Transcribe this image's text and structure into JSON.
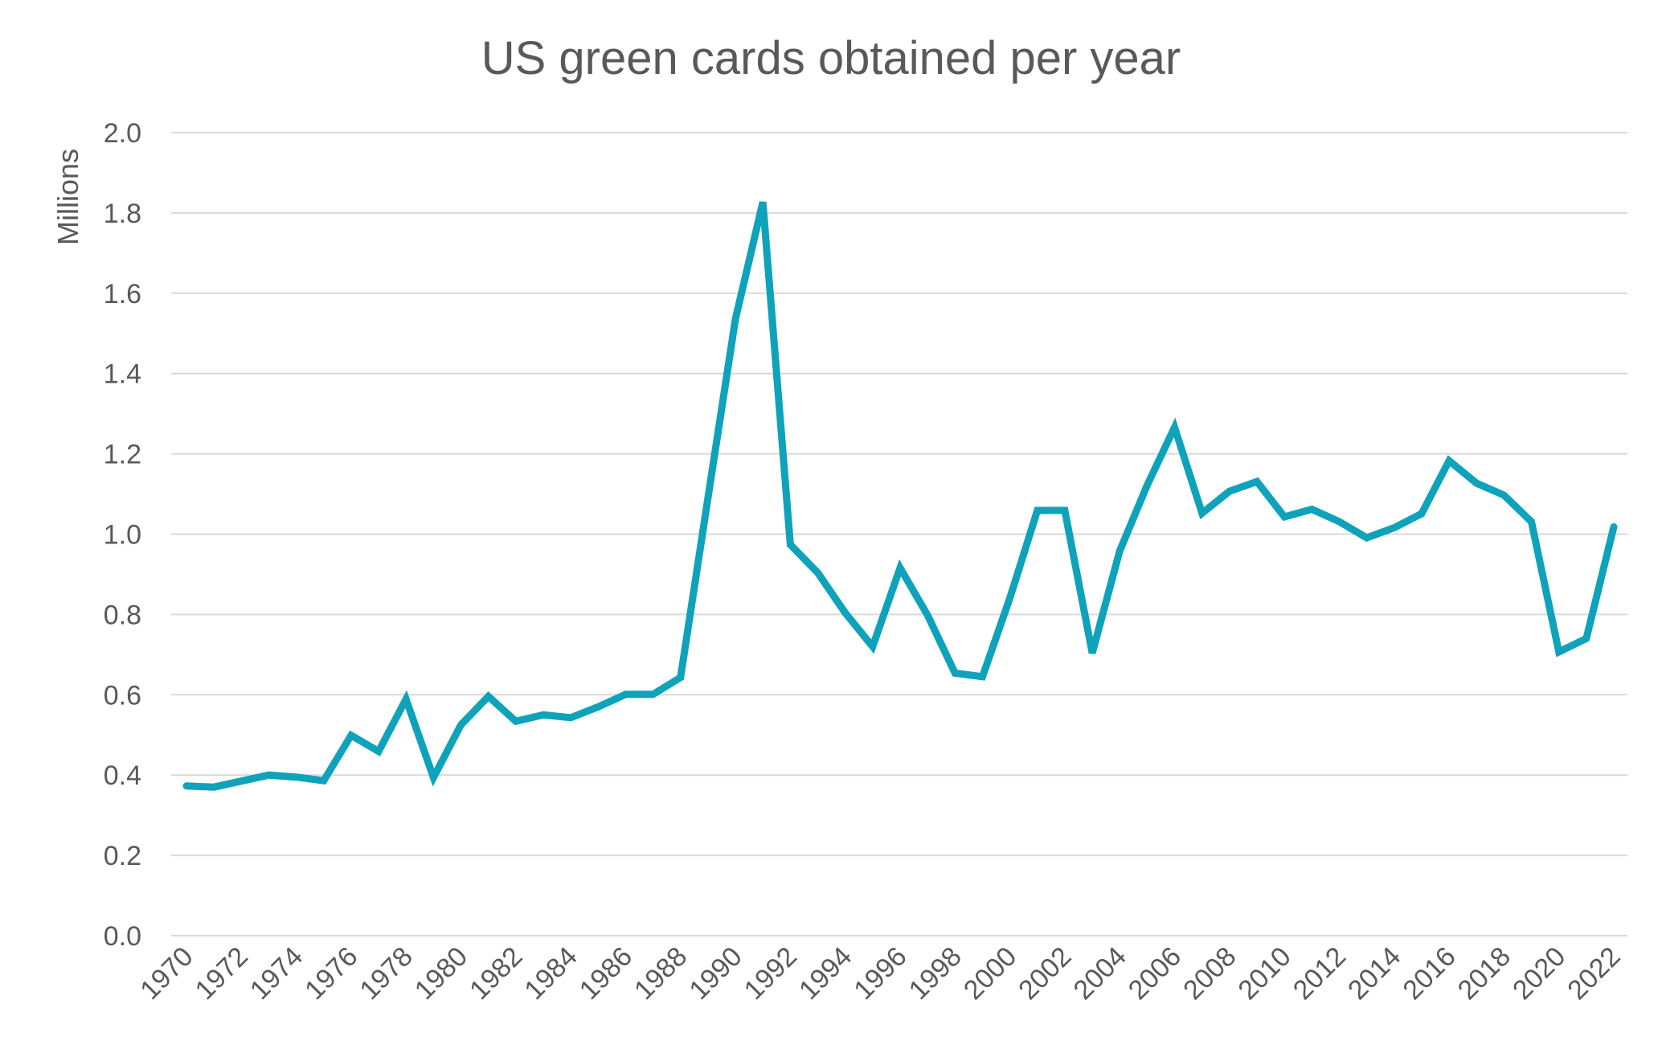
{
  "chart_data": {
    "type": "line",
    "title": "US green cards obtained per year",
    "xlabel": "",
    "ylabel": "Millions",
    "ylim": [
      0,
      2.0
    ],
    "yticks": [
      "0.0",
      "0.2",
      "0.4",
      "0.6",
      "0.8",
      "1.0",
      "1.2",
      "1.4",
      "1.6",
      "1.8",
      "2.0"
    ],
    "xticks": [
      "1970",
      "1972",
      "1974",
      "1976",
      "1978",
      "1980",
      "1982",
      "1984",
      "1986",
      "1988",
      "1990",
      "1992",
      "1994",
      "1996",
      "1998",
      "2000",
      "2002",
      "2004",
      "2006",
      "2008",
      "2010",
      "2012",
      "2014",
      "2016",
      "2018",
      "2020",
      "2022"
    ],
    "grid": true,
    "legend": "none",
    "line_color": "#0ea3ba",
    "x": [
      1970,
      1971,
      1972,
      1973,
      1974,
      1975,
      1976,
      1977,
      1978,
      1979,
      1980,
      1981,
      1982,
      1983,
      1984,
      1985,
      1986,
      1987,
      1988,
      1989,
      1990,
      1991,
      1992,
      1993,
      1994,
      1995,
      1996,
      1997,
      1998,
      1999,
      2000,
      2001,
      2002,
      2003,
      2004,
      2005,
      2006,
      2007,
      2008,
      2009,
      2010,
      2011,
      2012,
      2013,
      2014,
      2015,
      2016,
      2017,
      2018,
      2019,
      2020,
      2021,
      2022
    ],
    "values": [
      0.373,
      0.37,
      0.385,
      0.4,
      0.395,
      0.386,
      0.499,
      0.459,
      0.589,
      0.394,
      0.525,
      0.596,
      0.534,
      0.55,
      0.543,
      0.57,
      0.601,
      0.601,
      0.643,
      1.09,
      1.536,
      1.827,
      0.974,
      0.904,
      0.804,
      0.72,
      0.916,
      0.798,
      0.654,
      0.645,
      0.841,
      1.059,
      1.059,
      0.704,
      0.958,
      1.122,
      1.266,
      1.052,
      1.107,
      1.131,
      1.043,
      1.062,
      1.031,
      0.991,
      1.016,
      1.051,
      1.183,
      1.127,
      1.097,
      1.031,
      0.707,
      0.74,
      1.018
    ]
  }
}
